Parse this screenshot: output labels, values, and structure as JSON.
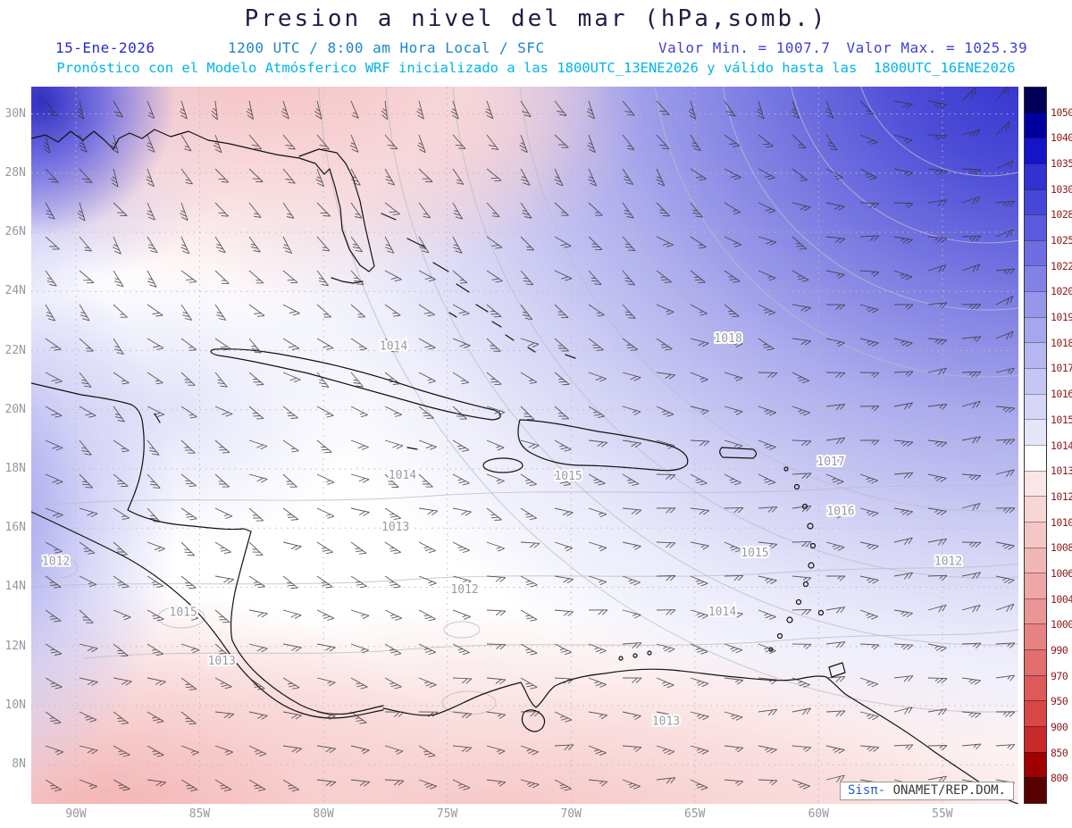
{
  "title": "Presion a nivel del mar (hPa,somb.)",
  "header": {
    "date": "15-Ene-2026",
    "time": "1200 UTC / 8:00 am Hora Local / SFC",
    "min_label": "Valor Min. = 1007.7",
    "max_label": "Valor Max. = 1025.39",
    "model_line": "Pronóstico con el Modelo Atmósferico WRF inicializado a las 1800UTC_13ENE2026 y válido hasta las  1800UTC_16ENE2026"
  },
  "watermark": {
    "brand": "Sisπ-",
    "text": " ONAMET/REP.DOM."
  },
  "colors": {
    "title": "#1d1d46",
    "date": "#2a2ac8",
    "time": "#1e86c8",
    "minmax": "#3f3fd2",
    "model_line": "#00b4e8",
    "axis_ticks": "#98989e",
    "contour_label": "#9a9aa6",
    "colorbar_label": "#8b1a1a",
    "coastline": "#111111",
    "wind_barb": "#333333",
    "gridline": "#bbbbbb",
    "isobar": "#bcbcca",
    "watermark_brand": "#2a5bd7",
    "watermark_text": "#3a3a3a"
  },
  "chart_data": {
    "type": "heatmap",
    "title": "Presion a nivel del mar (hPa,somb.)",
    "units": "hPa",
    "valid_time": "15-Ene-2026 1200 UTC / 8:00 am Hora Local / SFC",
    "model": "WRF",
    "init_time": "1800UTC_13ENE2026",
    "valid_until": "1800UTC_16ENE2026",
    "value_min": 1007.7,
    "value_max": 1025.39,
    "grid": true,
    "legend_position": "right",
    "lat_ticks": [
      "30N",
      "28N",
      "26N",
      "24N",
      "22N",
      "20N",
      "18N",
      "16N",
      "14N",
      "12N",
      "10N",
      "8N"
    ],
    "lon_ticks": [
      "90W",
      "85W",
      "80W",
      "75W",
      "70W",
      "65W",
      "60W",
      "55W"
    ],
    "colorbar_levels": [
      1050,
      1040,
      1035,
      1030,
      1028,
      1025,
      1022,
      1020,
      1019,
      1018,
      1017,
      1016,
      1015,
      1014,
      1013,
      1012,
      1010,
      1008,
      1006,
      1004,
      1000,
      990,
      970,
      950,
      900,
      850,
      800
    ],
    "colorbar_colors": [
      "#000058",
      "#0000a0",
      "#1414c8",
      "#3232d2",
      "#4646d8",
      "#5a5ade",
      "#6e6ee2",
      "#8282e6",
      "#9696ea",
      "#a6a6ee",
      "#b6b6f1",
      "#c6c6f4",
      "#d6d6f7",
      "#e6e6fa",
      "#ffffff",
      "#fae6e6",
      "#f7d6d6",
      "#f4c6c6",
      "#f1b6b6",
      "#eea6a6",
      "#ea9696",
      "#e68282",
      "#e26e6e",
      "#de5a5a",
      "#d84646",
      "#c82a2a",
      "#a00000",
      "#580000"
    ],
    "contour_labels": [
      {
        "text": "1014",
        "x": 0.367,
        "y": 0.367
      },
      {
        "text": "1018",
        "x": 0.706,
        "y": 0.356
      },
      {
        "text": "1017",
        "x": 0.81,
        "y": 0.528
      },
      {
        "text": "1015",
        "x": 0.544,
        "y": 0.548
      },
      {
        "text": "1014",
        "x": 0.376,
        "y": 0.547
      },
      {
        "text": "1016",
        "x": 0.82,
        "y": 0.597
      },
      {
        "text": "1013",
        "x": 0.369,
        "y": 0.619
      },
      {
        "text": "1015",
        "x": 0.733,
        "y": 0.655
      },
      {
        "text": "1012",
        "x": 0.929,
        "y": 0.667
      },
      {
        "text": "1012",
        "x": 0.025,
        "y": 0.667
      },
      {
        "text": "1015",
        "x": 0.154,
        "y": 0.738
      },
      {
        "text": "1012",
        "x": 0.439,
        "y": 0.706
      },
      {
        "text": "1014",
        "x": 0.7,
        "y": 0.737
      },
      {
        "text": "1013",
        "x": 0.193,
        "y": 0.806
      },
      {
        "text": "1013",
        "x": 0.643,
        "y": 0.89
      }
    ]
  }
}
